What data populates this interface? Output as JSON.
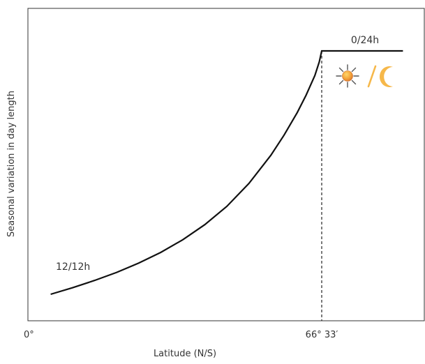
{
  "chart_data": {
    "type": "line",
    "title": "",
    "xlabel": "Latitude (N/S)",
    "ylabel": "Seasonal variation in day length",
    "x_ticks": [
      {
        "value": 0,
        "label": "0°"
      },
      {
        "value": 66.55,
        "label": "66° 33′"
      }
    ],
    "xlim": [
      0,
      90
    ],
    "ylim": [
      0,
      1
    ],
    "series": [
      {
        "values_note": "",
        "x": [
          5,
          10,
          15,
          20,
          25,
          30,
          35,
          40,
          45,
          50,
          55,
          58,
          61,
          63,
          65,
          66,
          66.55,
          70,
          75,
          80,
          85
        ],
        "y": [
          0,
          0.027,
          0.057,
          0.09,
          0.128,
          0.172,
          0.224,
          0.286,
          0.361,
          0.455,
          0.571,
          0.654,
          0.747,
          0.818,
          0.899,
          0.955,
          1,
          1,
          1,
          1,
          1
        ]
      }
    ],
    "annotations": [
      {
        "text": "12/12h",
        "x": 5,
        "y": 0
      },
      {
        "text": "0/24h",
        "x": 75,
        "y": 1
      }
    ],
    "reference_lines": [
      {
        "axis": "x",
        "value": 66.55,
        "style": "dashed"
      }
    ],
    "icons": [
      "sun-icon",
      "moon-icon"
    ],
    "colors": {
      "line": "#111111",
      "frame": "#333333",
      "sun": "#f4a33a",
      "sun_rays": "#555555",
      "slash": "#f6b84a",
      "moon": "#f6b84a"
    },
    "grid": false
  }
}
